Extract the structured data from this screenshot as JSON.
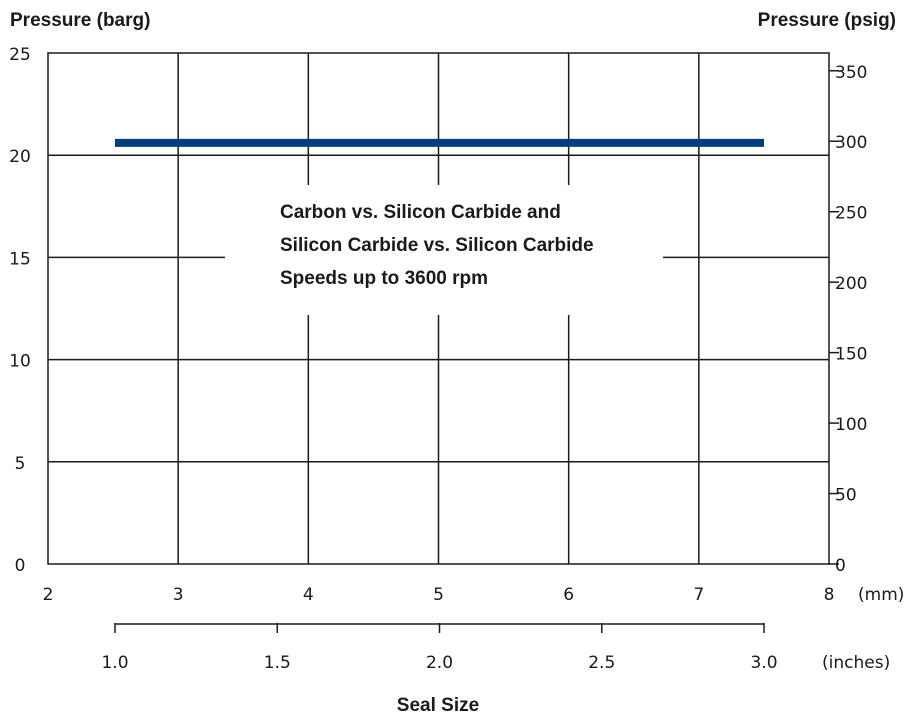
{
  "chart_data": {
    "type": "line",
    "y_left_label": "Pressure (barg)",
    "y_right_label": "Pressure (psig)",
    "x_label": "Seal Size",
    "x_mm_unit": "(mm)",
    "x_inch_unit": "(inches)",
    "ylim_barg": [
      0,
      25
    ],
    "ylim_psig": [
      0,
      362.6
    ],
    "xlim_mm": [
      2,
      8
    ],
    "y_left_ticks": [
      "0",
      "5",
      "10",
      "15",
      "20",
      "25"
    ],
    "y_right_ticks": [
      "0",
      "50",
      "100",
      "150",
      "200",
      "250",
      "300",
      "350"
    ],
    "x_mm_ticks": [
      "2",
      "3",
      "4",
      "5",
      "6",
      "7",
      "8"
    ],
    "x_inch_ticks": [
      "1.0",
      "1.5",
      "2.0",
      "2.5",
      "3.0"
    ],
    "grid": true,
    "annotations": [
      "Carbon vs. Silicon Carbide and",
      "Silicon Carbide vs. Silicon Carbide",
      "Speeds up to 3600 rpm"
    ],
    "series": [
      {
        "color": "#003e7e",
        "x_inches": [
          1.0,
          3.0
        ],
        "y_barg": [
          20.6,
          20.6
        ]
      }
    ]
  }
}
